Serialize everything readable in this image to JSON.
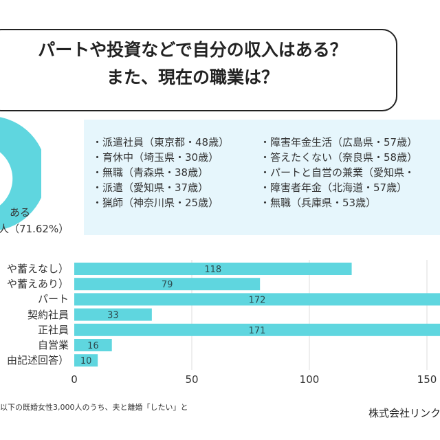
{
  "title": {
    "line1": "パートや投資などで自分の収入はある？",
    "line2": "また、現在の職業は？"
  },
  "pie": {
    "label_line1": "ある",
    "label_line2": "人（71.62%）",
    "value_percent": 71.62,
    "color": "#5fd6df"
  },
  "quotes": {
    "left": [
      "・派遣社員（東京都・48歳）",
      "・育休中（埼玉県・30歳）",
      "・無職（青森県・38歳）",
      "・派遣（愛知県・37歳）",
      "・猟師（神奈川県・25歳）"
    ],
    "right": [
      "・障害年金生活（広島県・57歳）",
      "・答えたくない（奈良県・58歳）",
      "・パートと自営の兼業（愛知県・",
      "・障害者年金（北海道・57歳）",
      "・無職（兵庫県・53歳）"
    ]
  },
  "chart_data": {
    "type": "bar",
    "orientation": "horizontal",
    "categories": [
      "や蓄えなし）",
      "や蓄えあり）",
      "パート",
      "契約社員",
      "正社員",
      "自営業",
      "由記述回答）"
    ],
    "values": [
      118,
      79,
      172,
      33,
      171,
      16,
      10
    ],
    "xticks": [
      "0",
      "50",
      "100",
      "150"
    ],
    "bar_color": "#5fd6df",
    "grid": true
  },
  "footnote": "以下の既婚女性3,000人のうち、夫と離婚「したい」と",
  "company": "株式会社リンク"
}
